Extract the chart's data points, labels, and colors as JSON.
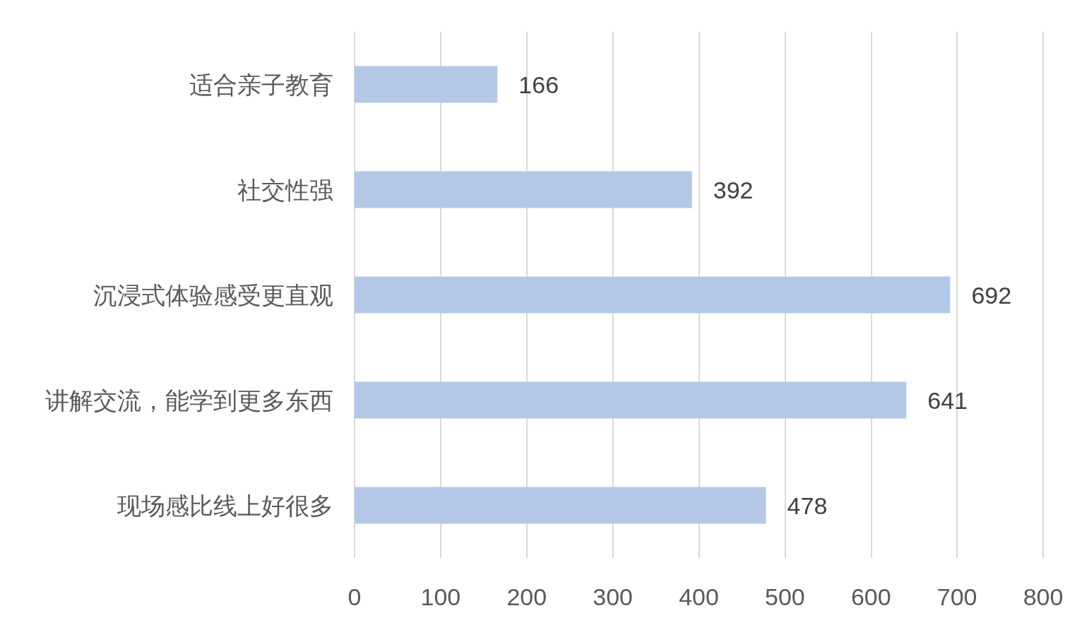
{
  "chart_data": {
    "type": "bar",
    "orientation": "horizontal",
    "categories": [
      "适合亲子教育",
      "社交性强",
      "沉浸式体验感受更直观",
      "讲解交流，能学到更多东西",
      "现场感比线上好很多"
    ],
    "values": [
      166,
      392,
      692,
      641,
      478
    ],
    "color": "#b4c7e7",
    "xlim": [
      0,
      800
    ],
    "xticks": [
      0,
      100,
      200,
      300,
      400,
      500,
      600,
      700,
      800
    ],
    "grid": "x",
    "data_labels": true
  }
}
